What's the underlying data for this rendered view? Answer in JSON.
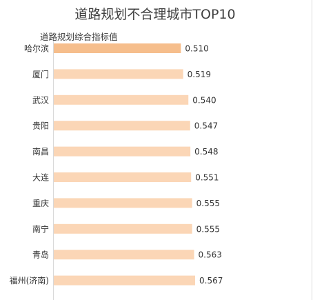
{
  "chart_data": {
    "type": "bar",
    "orientation": "horizontal",
    "title": "道路规划不合理城市TOP10",
    "subtitle": "道路规划综合指标值",
    "categories": [
      "哈尔滨",
      "厦门",
      "武汉",
      "贵阳",
      "南昌",
      "大连",
      "重庆",
      "南宁",
      "青岛",
      "福州(济南)"
    ],
    "values": [
      0.51,
      0.519,
      0.54,
      0.547,
      0.548,
      0.551,
      0.555,
      0.555,
      0.563,
      0.567
    ],
    "value_labels": [
      "0.510",
      "0.519",
      "0.540",
      "0.547",
      "0.548",
      "0.551",
      "0.555",
      "0.555",
      "0.563",
      "0.567"
    ],
    "xlim": [
      0,
      0.567
    ],
    "grid": false,
    "legend": "none",
    "colors": {
      "highlight": "#f6be8c",
      "bar": "#fbd6b6",
      "axis": "#d9d9d9"
    }
  }
}
